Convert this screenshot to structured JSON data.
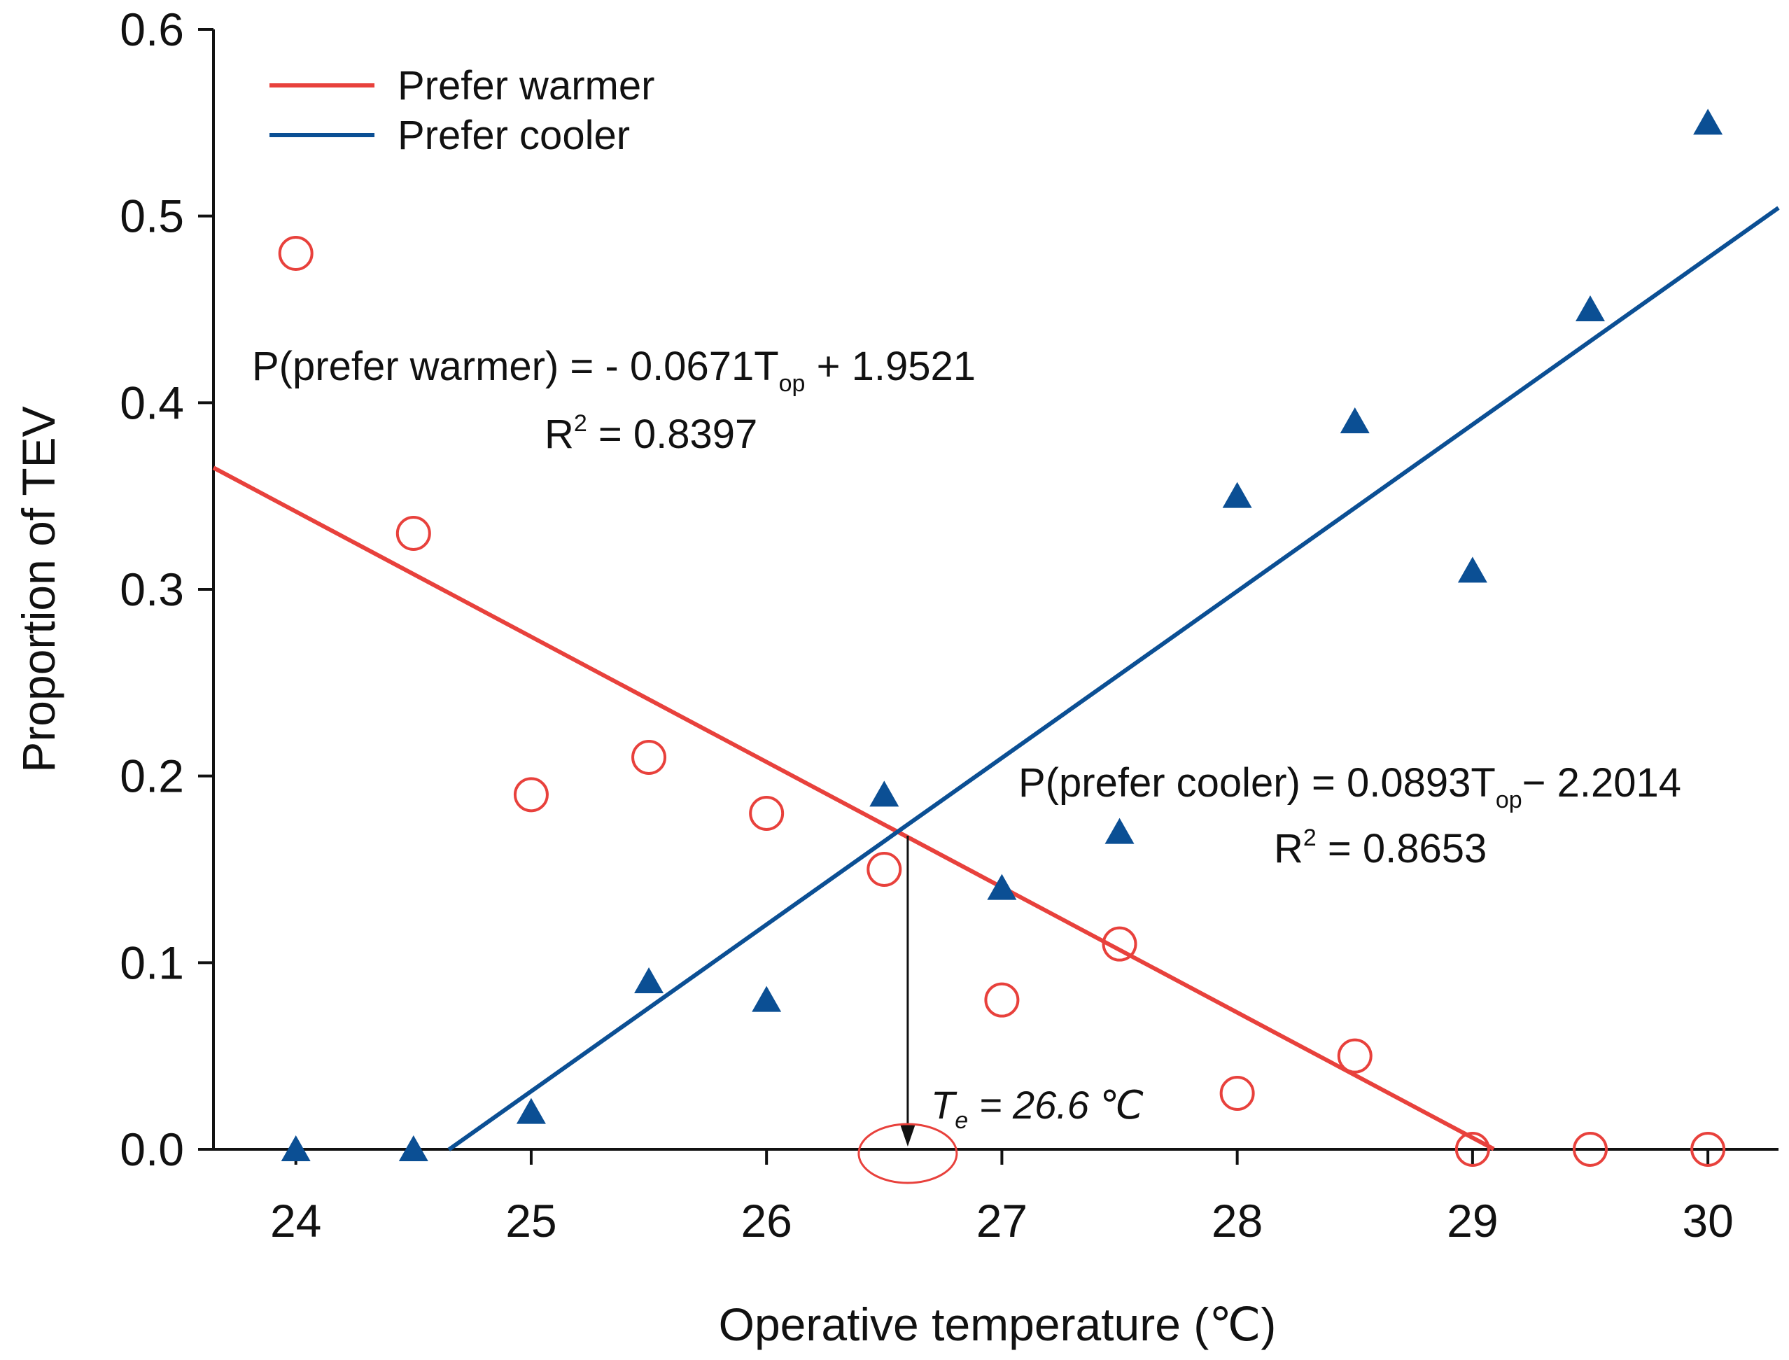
{
  "chart_data": {
    "type": "scatter",
    "title": "",
    "xlabel": "Operative temperature (℃)",
    "ylabel": "Proportion of TEV",
    "xlim": [
      23.65,
      30.3
    ],
    "ylim": [
      0,
      0.6
    ],
    "xticks": [
      24,
      25,
      26,
      27,
      28,
      29,
      30
    ],
    "yticks": [
      0.0,
      0.1,
      0.2,
      0.3,
      0.4,
      0.5,
      0.6
    ],
    "x_tick_labels": [
      "24",
      "25",
      "26",
      "27",
      "28",
      "29",
      "30"
    ],
    "y_tick_labels": [
      "0.0",
      "0.1",
      "0.2",
      "0.3",
      "0.4",
      "0.5",
      "0.6"
    ],
    "grid": false,
    "legend_position": "top-left",
    "series": [
      {
        "name": "Prefer warmer",
        "color": "#e8413c",
        "marker": "open-circle",
        "x": [
          24,
          24.5,
          25,
          25.5,
          26,
          26.5,
          27,
          27.5,
          28,
          28.5,
          29,
          29.5,
          30
        ],
        "values": [
          0.48,
          0.33,
          0.19,
          0.21,
          0.18,
          0.15,
          0.08,
          0.11,
          0.03,
          0.05,
          0.0,
          0.0,
          0.0
        ],
        "fit": {
          "slope": -0.0671,
          "intercept": 1.9521,
          "x_range": [
            23.65,
            29.09
          ]
        },
        "equation": {
          "prefix": "P(prefer warmer) = - 0.0671T",
          "subscript": "op",
          "suffix": " + 1.9521",
          "r2_label": "R",
          "r2_sup": "2",
          "r2_value": " = 0.8397"
        }
      },
      {
        "name": "Prefer cooler",
        "color": "#0b4f94",
        "marker": "filled-triangle",
        "x": [
          24,
          24.5,
          25,
          25.5,
          26,
          26.5,
          27,
          27.5,
          28,
          28.5,
          29,
          29.5,
          30
        ],
        "values": [
          0.0,
          0.0,
          0.02,
          0.09,
          0.08,
          0.19,
          0.14,
          0.17,
          0.35,
          0.39,
          0.31,
          0.45,
          0.55
        ],
        "fit": {
          "slope": 0.0893,
          "intercept": -2.2014,
          "x_range": [
            24.65,
            30.3
          ]
        },
        "equation": {
          "prefix": "P(prefer cooler) = 0.0893T",
          "subscript": "op",
          "suffix": "− 2.2014",
          "r2_label": "R",
          "r2_sup": "2",
          "r2_value": " = 0.8653"
        }
      }
    ],
    "annotations": [
      {
        "type": "threshold",
        "label_main": "T",
        "label_sub": "e",
        "label_rest": " = 26.6 ℃",
        "x": 26.6,
        "intersection_y": 0.168,
        "color": "#e8413c"
      }
    ]
  }
}
